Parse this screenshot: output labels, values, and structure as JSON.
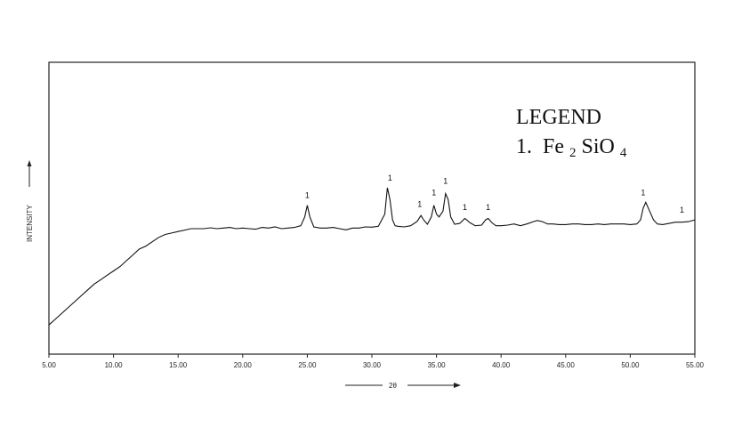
{
  "chart_data": {
    "type": "line",
    "xlabel": "2θ",
    "ylabel": "INTENSITY",
    "xlim": [
      5,
      55
    ],
    "ylim": [
      0,
      100
    ],
    "x_ticks": [
      "5.00",
      "10.00",
      "15.00",
      "20.00",
      "25.00",
      "30.00",
      "35.00",
      "40.00",
      "45.00",
      "50.00",
      "55.00"
    ],
    "legend": {
      "title": "LEGEND",
      "entries": [
        {
          "num": "1.",
          "formula": [
            "Fe",
            "2",
            "SiO",
            "4"
          ]
        }
      ]
    },
    "series": [
      {
        "x": [
          5.0,
          5.5,
          6.0,
          6.5,
          7.0,
          7.5,
          8.0,
          8.5,
          9.0,
          9.5,
          10.0,
          10.5,
          11.0,
          11.5,
          12.0,
          12.5,
          13.0,
          13.5,
          14.0,
          14.5,
          15.0,
          15.5,
          16.0,
          16.5,
          17.0,
          17.5,
          18.0,
          18.5,
          19.0,
          19.5,
          20.0,
          20.5,
          21.0,
          21.5,
          22.0,
          22.5,
          23.0,
          23.5,
          24.0,
          24.5,
          24.8,
          25.0,
          25.2,
          25.5,
          26.0,
          26.5,
          27.0,
          27.5,
          28.0,
          28.5,
          29.0,
          29.5,
          30.0,
          30.5,
          31.0,
          31.2,
          31.4,
          31.6,
          31.8,
          32.0,
          32.5,
          33.0,
          33.5,
          33.8,
          34.0,
          34.3,
          34.6,
          34.8,
          35.0,
          35.2,
          35.5,
          35.7,
          35.9,
          36.1,
          36.4,
          36.8,
          37.2,
          37.6,
          38.0,
          38.5,
          38.8,
          39.0,
          39.3,
          39.6,
          40.0,
          40.5,
          41.0,
          41.5,
          42.0,
          42.5,
          42.8,
          43.2,
          43.6,
          44.0,
          44.5,
          45.0,
          45.5,
          46.0,
          46.5,
          47.0,
          47.5,
          48.0,
          48.5,
          49.0,
          49.5,
          50.0,
          50.5,
          50.8,
          51.0,
          51.2,
          51.5,
          51.8,
          52.1,
          52.5,
          53.0,
          53.5,
          54.0,
          54.5,
          55.0
        ],
        "y": [
          10,
          12,
          14,
          16,
          18,
          20,
          22,
          24,
          25.5,
          27,
          28.5,
          30,
          32,
          34,
          36,
          37,
          38.5,
          40,
          41,
          41.5,
          42,
          42.5,
          43,
          43,
          43,
          43.3,
          43,
          43.2,
          43.4,
          43,
          43.2,
          43,
          42.8,
          43.4,
          43.2,
          43.6,
          43,
          43.2,
          43.4,
          44,
          47,
          51,
          47,
          43.6,
          43.2,
          43.2,
          43.4,
          43,
          42.6,
          43.2,
          43.2,
          43.6,
          43.5,
          43.8,
          48,
          57,
          53,
          46,
          44,
          43.8,
          43.6,
          44,
          45.5,
          47.5,
          46,
          44.5,
          47,
          51,
          48,
          47,
          49,
          55,
          53,
          47,
          44.5,
          44.8,
          46.5,
          45,
          44,
          44.2,
          46,
          46.5,
          45,
          44,
          44,
          44.2,
          44.6,
          44,
          44.6,
          45.4,
          45.8,
          45.4,
          44.6,
          44.6,
          44.4,
          44.4,
          44.6,
          44.6,
          44.4,
          44.4,
          44.6,
          44.4,
          44.6,
          44.6,
          44.6,
          44.4,
          44.6,
          46,
          50,
          52,
          49,
          46,
          44.6,
          44.4,
          44.8,
          45.2,
          45.2,
          45.4,
          46
        ]
      }
    ],
    "annotations": [
      {
        "x": 25.0,
        "y": 51,
        "text": "1"
      },
      {
        "x": 31.4,
        "y": 57,
        "text": "1"
      },
      {
        "x": 33.7,
        "y": 48,
        "text": "1"
      },
      {
        "x": 34.8,
        "y": 52,
        "text": "1"
      },
      {
        "x": 35.7,
        "y": 56,
        "text": "1"
      },
      {
        "x": 37.2,
        "y": 47,
        "text": "1"
      },
      {
        "x": 39.0,
        "y": 47,
        "text": "1"
      },
      {
        "x": 51.0,
        "y": 52,
        "text": "1"
      },
      {
        "x": 54.0,
        "y": 46,
        "text": "1"
      }
    ]
  }
}
